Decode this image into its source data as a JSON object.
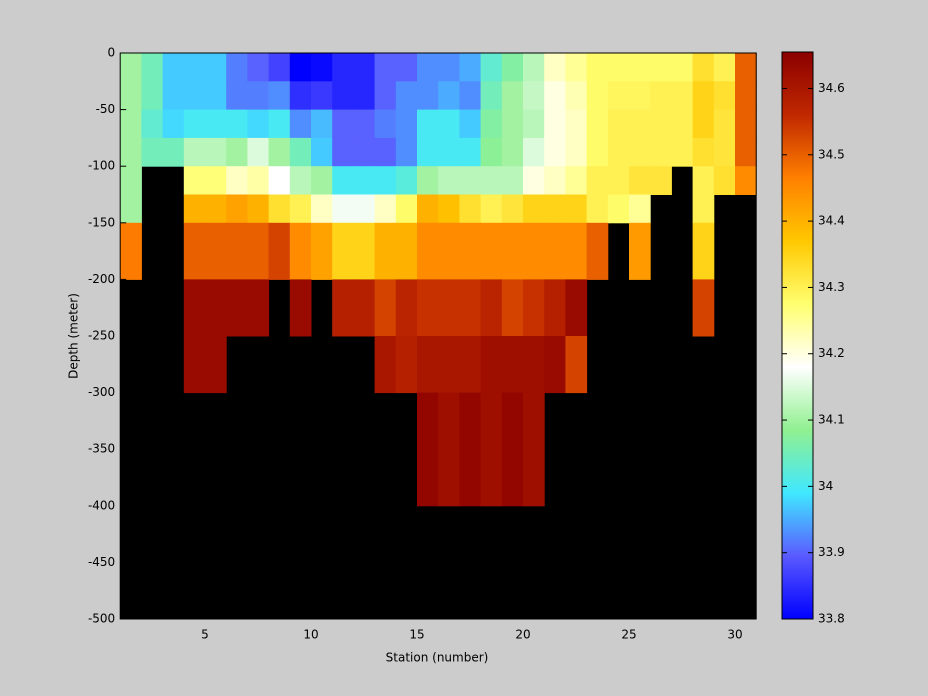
{
  "chart_data": {
    "type": "heatmap",
    "xlabel": "Station (number)",
    "ylabel": "Depth (meter)",
    "x": [
      1,
      2,
      3,
      4,
      5,
      6,
      7,
      8,
      9,
      10,
      11,
      12,
      13,
      14,
      15,
      16,
      17,
      18,
      19,
      20,
      21,
      22,
      23,
      24,
      25,
      26,
      27,
      28,
      29,
      30,
      31
    ],
    "y": [
      0,
      -25,
      -50,
      -75,
      -100,
      -125,
      -150,
      -200,
      -250,
      -300,
      -400,
      -500
    ],
    "z": [
      [
        34.1,
        34.05,
        33.97,
        33.97,
        33.97,
        33.92,
        33.9,
        33.87,
        33.8,
        33.81,
        33.84,
        33.84,
        33.9,
        33.9,
        33.93,
        33.93,
        33.95,
        34.03,
        34.07,
        34.12,
        34.22,
        34.25,
        34.28,
        34.28,
        34.28,
        34.28,
        34.28,
        34.33,
        34.3,
        34.5
      ],
      [
        34.1,
        34.05,
        33.97,
        33.97,
        33.97,
        33.92,
        33.92,
        33.93,
        33.85,
        33.86,
        33.84,
        33.84,
        33.9,
        33.93,
        33.93,
        33.95,
        33.93,
        34.05,
        34.1,
        34.13,
        34.2,
        34.23,
        34.28,
        34.29,
        34.29,
        34.3,
        34.3,
        34.35,
        34.33,
        34.5
      ],
      [
        34.1,
        34.03,
        33.98,
        34.0,
        34.0,
        34.0,
        33.98,
        34.0,
        33.93,
        33.96,
        33.9,
        33.9,
        33.92,
        33.93,
        34.0,
        34.0,
        33.97,
        34.07,
        34.1,
        34.12,
        34.2,
        34.22,
        34.28,
        34.3,
        34.3,
        34.3,
        34.3,
        34.35,
        34.32,
        34.5
      ],
      [
        34.1,
        34.05,
        34.05,
        34.12,
        34.12,
        34.1,
        34.15,
        34.1,
        34.05,
        33.97,
        33.9,
        33.9,
        33.9,
        33.93,
        34.0,
        34.0,
        34.0,
        34.08,
        34.1,
        34.15,
        34.2,
        34.22,
        34.28,
        34.3,
        34.3,
        34.3,
        34.3,
        34.33,
        34.32,
        34.5
      ],
      [
        34.1,
        null,
        null,
        34.27,
        34.27,
        34.22,
        34.24,
        34.18,
        34.12,
        34.1,
        34.0,
        34.0,
        34.0,
        34.02,
        34.1,
        34.12,
        34.12,
        34.12,
        34.12,
        34.2,
        34.22,
        34.25,
        34.3,
        34.3,
        34.32,
        34.32,
        null,
        34.3,
        34.33,
        34.45
      ],
      [
        34.1,
        null,
        null,
        34.4,
        34.4,
        34.42,
        34.4,
        34.33,
        34.3,
        34.22,
        34.17,
        34.17,
        34.22,
        34.28,
        34.4,
        34.38,
        34.33,
        34.3,
        34.32,
        34.35,
        34.35,
        34.35,
        34.3,
        34.28,
        34.25,
        null,
        null,
        34.3,
        null,
        null
      ],
      [
        34.47,
        null,
        null,
        34.5,
        34.5,
        34.5,
        34.5,
        34.53,
        34.45,
        34.42,
        34.35,
        34.35,
        34.4,
        34.4,
        34.45,
        34.45,
        34.45,
        34.45,
        34.45,
        34.45,
        34.45,
        34.45,
        34.5,
        null,
        34.43,
        null,
        null,
        34.35,
        null,
        null
      ],
      [
        null,
        null,
        null,
        34.63,
        34.63,
        34.63,
        34.63,
        null,
        34.63,
        null,
        34.58,
        34.58,
        34.53,
        34.57,
        34.55,
        34.55,
        34.55,
        34.57,
        34.53,
        34.55,
        34.58,
        34.63,
        null,
        null,
        null,
        null,
        null,
        34.53,
        null,
        null
      ],
      [
        null,
        null,
        null,
        34.63,
        34.63,
        null,
        null,
        null,
        null,
        null,
        null,
        null,
        34.6,
        34.58,
        34.6,
        34.6,
        34.6,
        34.62,
        34.62,
        34.62,
        34.63,
        34.53,
        null,
        null,
        null,
        null,
        null,
        null,
        null,
        null
      ],
      [
        null,
        null,
        null,
        null,
        null,
        null,
        null,
        null,
        null,
        null,
        null,
        null,
        null,
        null,
        34.64,
        34.62,
        34.64,
        34.62,
        34.64,
        34.62,
        null,
        null,
        null,
        null,
        null,
        null,
        null,
        null,
        null,
        null
      ],
      [
        null,
        null,
        null,
        null,
        null,
        null,
        null,
        null,
        null,
        null,
        null,
        null,
        null,
        null,
        null,
        null,
        null,
        null,
        null,
        null,
        null,
        null,
        null,
        null,
        null,
        null,
        null,
        null,
        null,
        null
      ]
    ],
    "xlim": [
      1,
      31
    ],
    "ylim": [
      -500,
      0
    ],
    "xticks": [
      5,
      10,
      15,
      20,
      25,
      30
    ],
    "yticks": [
      0,
      -50,
      -100,
      -150,
      -200,
      -250,
      -300,
      -350,
      -400,
      -450,
      -500
    ],
    "clim": [
      33.8,
      34.655
    ],
    "cticks": [
      33.8,
      33.9,
      34,
      34.1,
      34.2,
      34.3,
      34.4,
      34.5,
      34.6
    ],
    "colormap": [
      "#0000ff",
      "#5a5aff",
      "#40e8ff",
      "#90f090",
      "#ffffff",
      "#ffff70",
      "#ffc800",
      "#ff8000",
      "#c02800",
      "#8b0000"
    ],
    "nan_color": "#000000"
  }
}
